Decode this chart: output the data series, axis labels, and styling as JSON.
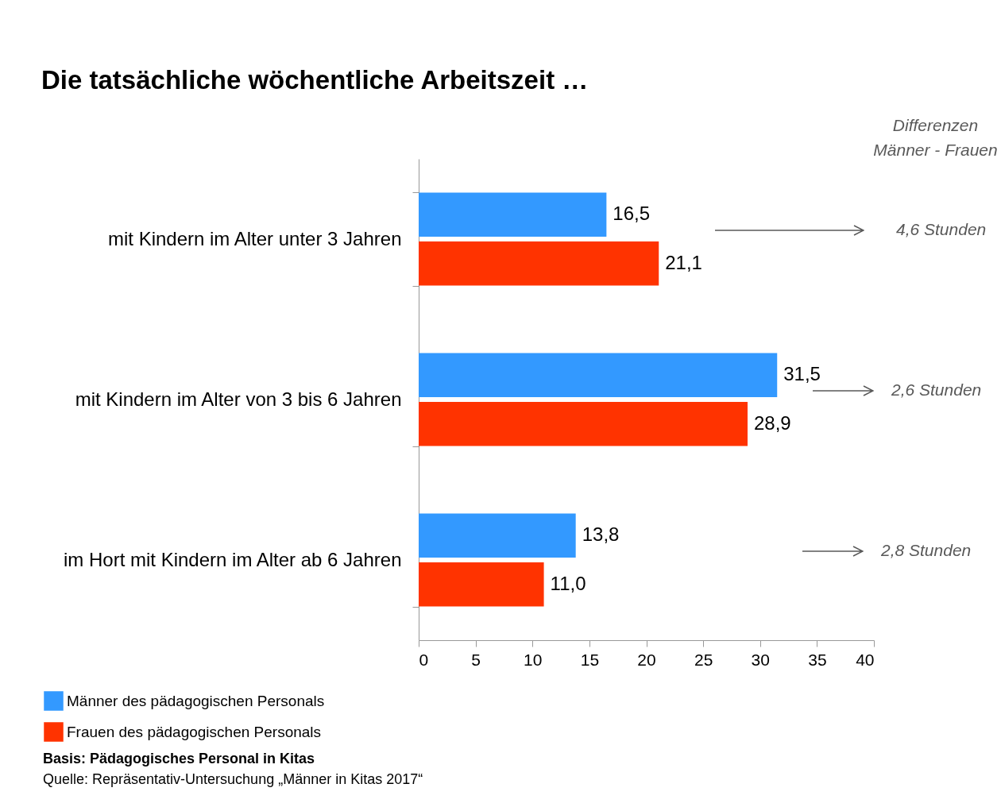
{
  "chart_data": {
    "type": "bar",
    "orientation": "horizontal",
    "title": "Die tatsächliche wöchentliche Arbeitszeit …",
    "categories": [
      "mit Kindern im Alter unter 3 Jahren",
      "mit Kindern im Alter von 3 bis 6 Jahren",
      "im Hort mit Kindern im Alter ab 6 Jahren"
    ],
    "series": [
      {
        "name": "Männer des pädagogischen Personals",
        "color": "#3399ff",
        "values": [
          16.5,
          31.5,
          13.8
        ],
        "value_labels": [
          "16,5",
          "31,5",
          "13,8"
        ]
      },
      {
        "name": "Frauen des pädagogischen Personals",
        "color": "#ff3300",
        "values": [
          21.1,
          28.9,
          11.0
        ],
        "value_labels": [
          "21,1",
          "28,9",
          "11,0"
        ]
      }
    ],
    "xlim": [
      0,
      40
    ],
    "xticks": [
      0,
      5,
      10,
      15,
      20,
      25,
      30,
      35,
      40
    ],
    "grid": false,
    "legend": "bottom left",
    "annotations": [
      "Differenzen Männer - Frauen",
      "4,6 Stunden",
      "2,6 Stunden",
      "2,8 Stunden",
      "Basis: Pädagogisches Personal in Kitas",
      "Quelle: Repräsentativ-Untersuchung „Männer in Kitas 2017“"
    ]
  }
}
